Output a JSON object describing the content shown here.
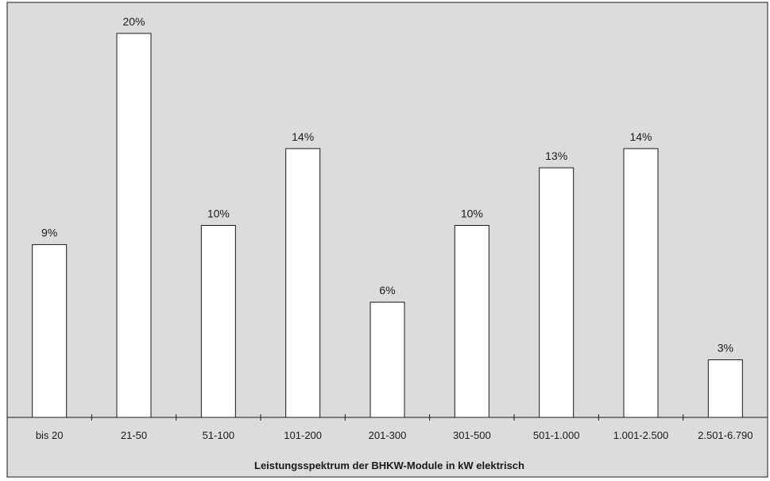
{
  "chart_data": {
    "type": "bar",
    "title": "",
    "xlabel": "Leistungsspektrum der BHKW-Module in kW elektrisch",
    "ylabel": "",
    "categories": [
      "bis 20",
      "21-50",
      "51-100",
      "101-200",
      "201-300",
      "301-500",
      "501-1.000",
      "1.001-2.500",
      "2.501-6.790"
    ],
    "values": [
      9,
      20,
      10,
      14,
      6,
      10,
      13,
      14,
      3
    ],
    "data_labels": [
      "9%",
      "20%",
      "10%",
      "14%",
      "6%",
      "10%",
      "13%",
      "14%",
      "3%"
    ],
    "unit": "%",
    "ylim": [
      0,
      21.5
    ],
    "grid": false,
    "legend": "none"
  },
  "colors": {
    "plot_background": "#dcdcdc",
    "bar_fill": "#ffffff",
    "bar_stroke": "#1a1a1a",
    "axis": "#1a1a1a"
  }
}
